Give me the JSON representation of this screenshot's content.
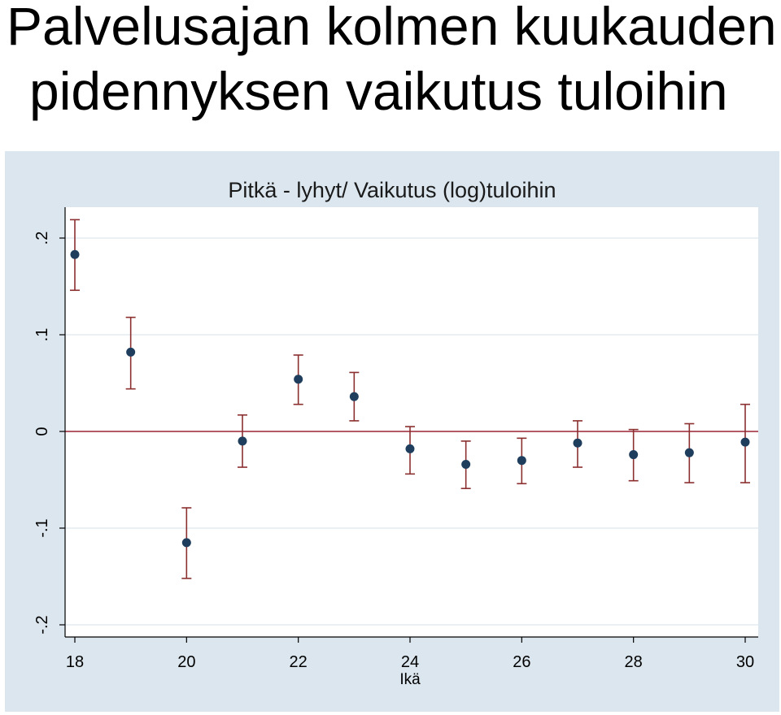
{
  "slide": {
    "title_line1": "Palvelusajan kolmen kuukauden",
    "title_line2": "pidennyksen vaikutus tuloihin"
  },
  "colors": {
    "outer_background": "#dbe6ee",
    "plot_background": "#ffffff",
    "gridline": "#e4ecf1",
    "marker": "#1f3d5c",
    "error_bar": "#8b2f2f",
    "reference_line": "#9b2335"
  },
  "chart_data": {
    "type": "scatter",
    "title": "Pitkä - lyhyt/ Vaikutus (log)tuloihin",
    "xlabel": "Ikä",
    "ylabel": "",
    "xlim": [
      18,
      30
    ],
    "ylim": [
      -0.2,
      0.2
    ],
    "x_ticks": [
      18,
      20,
      22,
      24,
      26,
      28,
      30
    ],
    "x_tick_labels": [
      "18",
      "20",
      "22",
      "24",
      "26",
      "28",
      "30"
    ],
    "y_ticks": [
      0.2,
      0.1,
      0,
      -0.1,
      -0.2
    ],
    "y_tick_labels": [
      ".2",
      ".1",
      "0",
      "-.1",
      "-.2"
    ],
    "grid": true,
    "reference_line_y": 0,
    "series": [
      {
        "x": [
          18,
          19,
          20,
          21,
          22,
          23,
          24,
          25,
          26,
          27,
          28,
          29,
          30
        ],
        "y": [
          0.183,
          0.082,
          -0.115,
          -0.01,
          0.054,
          0.036,
          -0.018,
          -0.034,
          -0.03,
          -0.012,
          -0.024,
          -0.022,
          -0.011
        ],
        "ci_low": [
          0.146,
          0.044,
          -0.152,
          -0.037,
          0.028,
          0.011,
          -0.044,
          -0.059,
          -0.054,
          -0.037,
          -0.051,
          -0.053,
          -0.053
        ],
        "ci_high": [
          0.219,
          0.118,
          -0.079,
          0.017,
          0.079,
          0.061,
          0.005,
          -0.01,
          -0.007,
          0.011,
          0.002,
          0.008,
          0.028
        ]
      }
    ]
  }
}
